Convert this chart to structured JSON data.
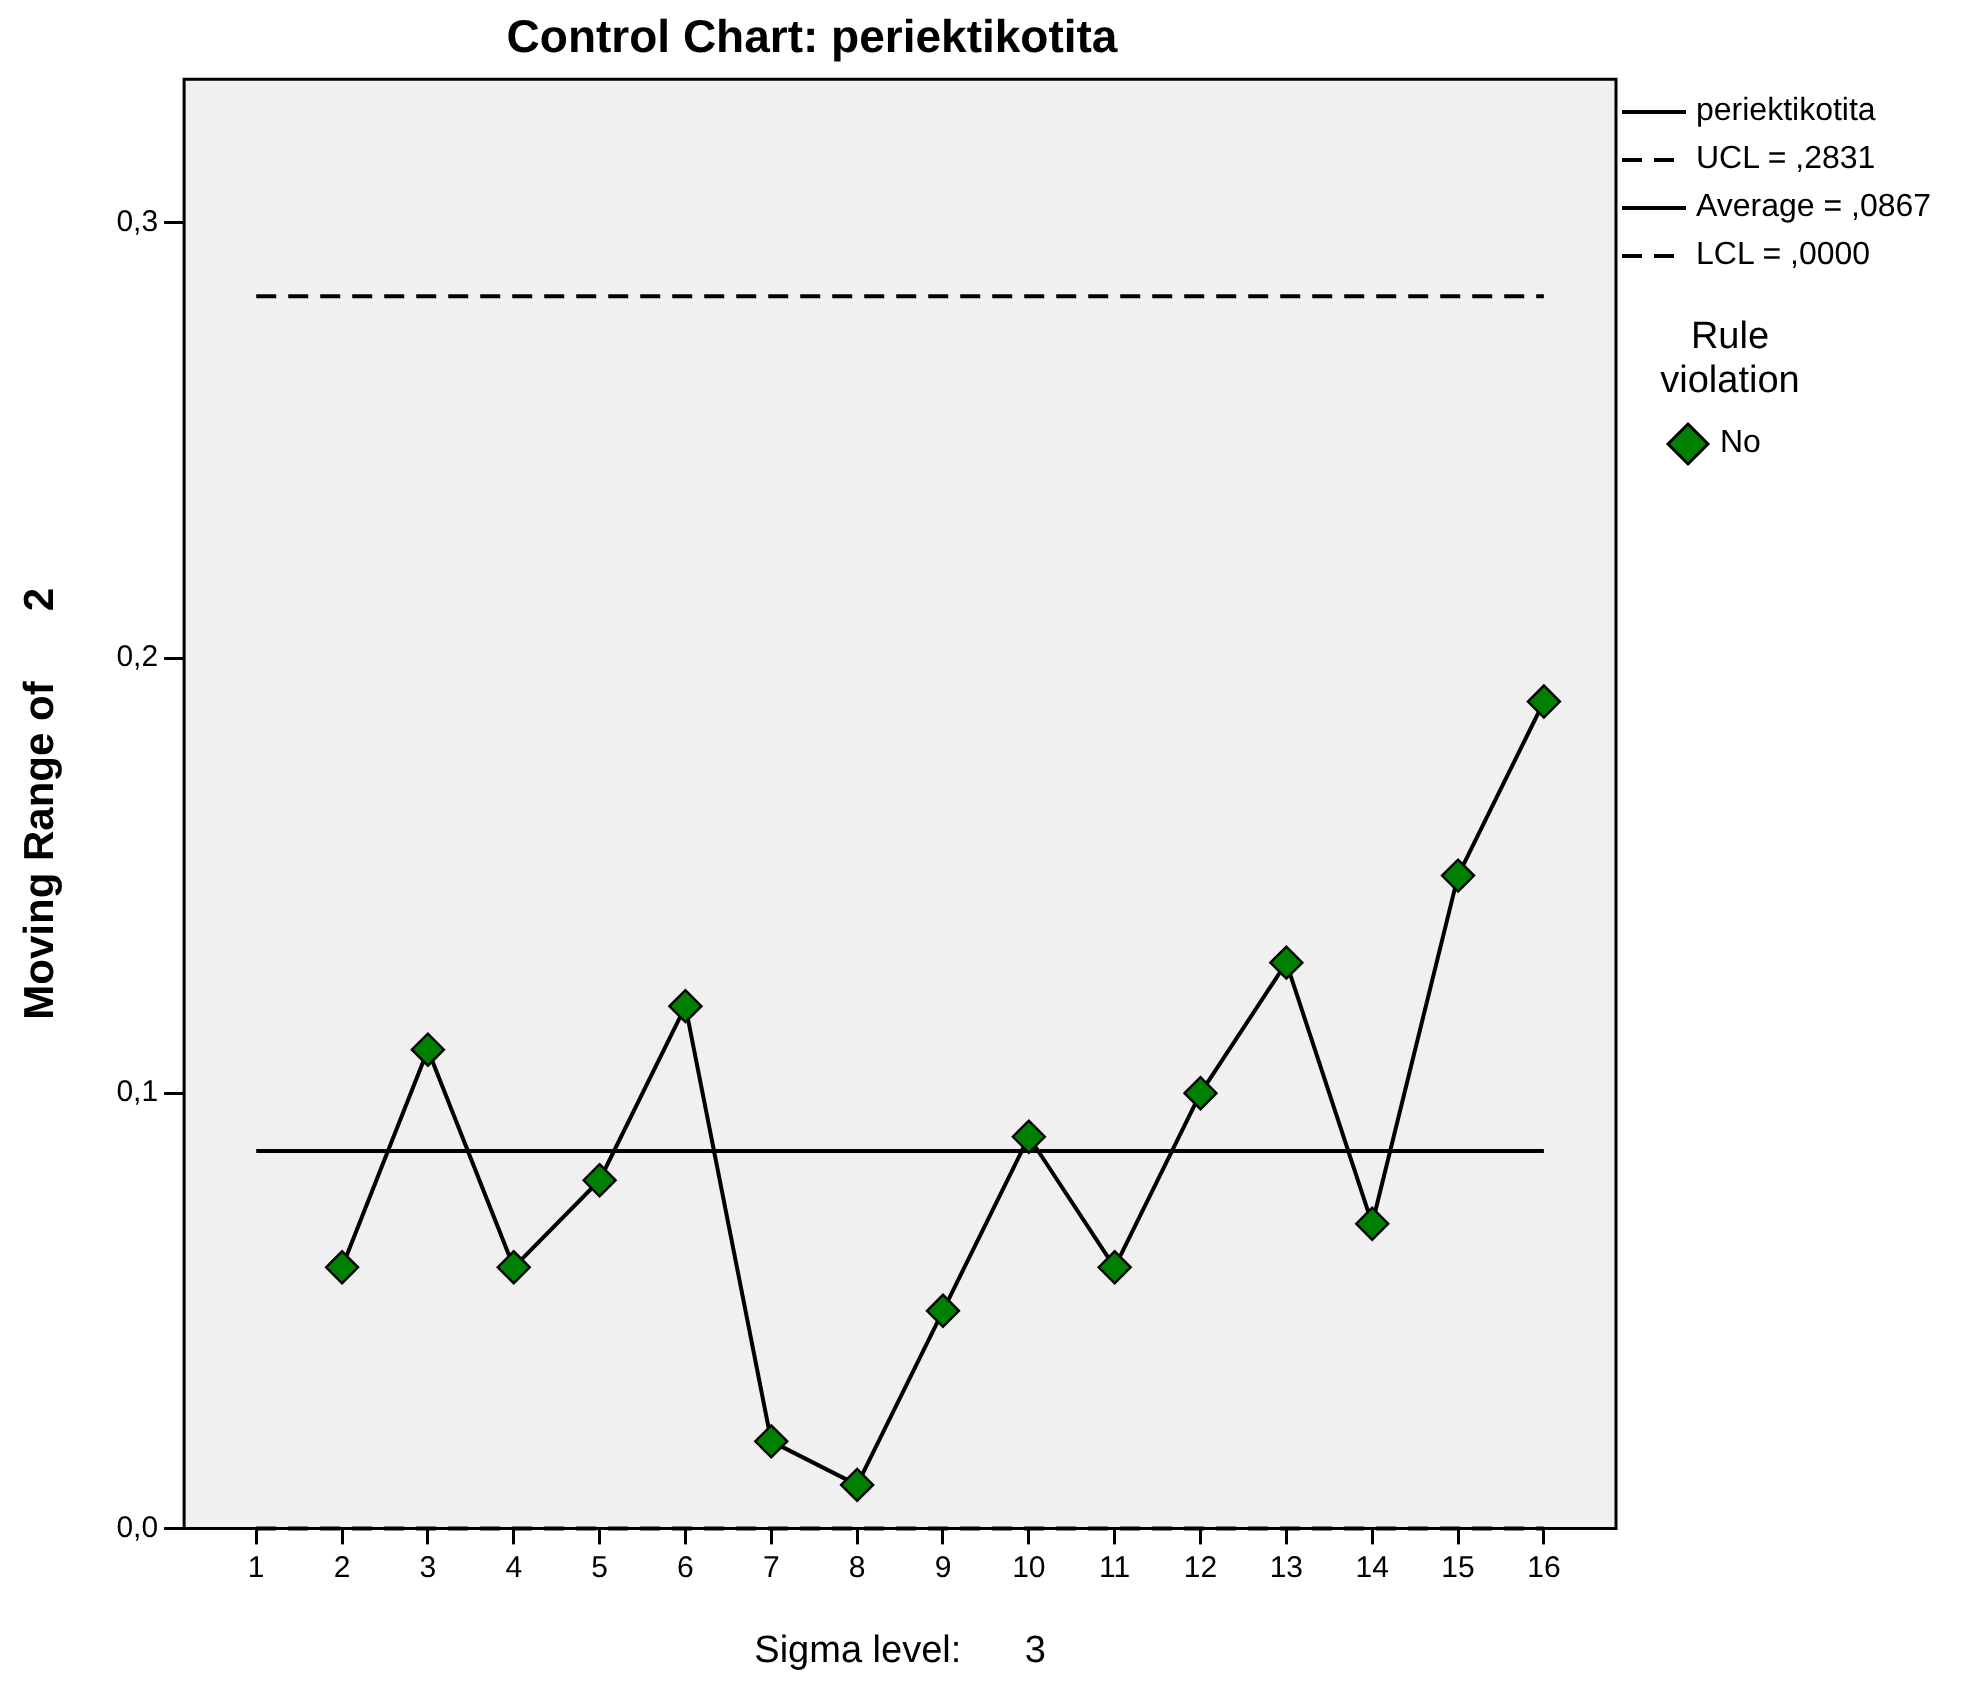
{
  "chart_data": {
    "type": "line",
    "title": "Control Chart: periektikotita",
    "xlabel": "Sigma level:      3",
    "ylabel": "Moving Range of      2",
    "legend_title": "Rule violation",
    "legend": "right",
    "grid": false,
    "xlim": [
      0.16,
      16.84
    ],
    "xticks": [
      1,
      2,
      3,
      4,
      5,
      6,
      7,
      8,
      9,
      10,
      11,
      12,
      13,
      14,
      15,
      16
    ],
    "ylim": [
      0,
      0.333
    ],
    "yticks": [
      {
        "value": 0,
        "label": "0,0"
      },
      {
        "value": 0.1,
        "label": "0,1"
      },
      {
        "value": 0.2,
        "label": "0,2"
      },
      {
        "value": 0.3,
        "label": "0,3"
      }
    ],
    "series": [
      {
        "name": "periektikotita",
        "type": "line",
        "color": "#000000",
        "marker": "none",
        "line_style": "solid",
        "x": [
          2,
          3,
          4,
          5,
          6,
          7,
          8,
          9,
          10,
          11,
          12,
          13,
          14,
          15,
          16
        ],
        "values": [
          0.06,
          0.11,
          0.06,
          0.08,
          0.12,
          0.02,
          0.01,
          0.05,
          0.09,
          0.06,
          0.1,
          0.13,
          0.07,
          0.15,
          0.19
        ]
      },
      {
        "name": "No",
        "type": "scatter",
        "color": "#008000",
        "marker": "diamond",
        "x": [
          2,
          3,
          4,
          5,
          6,
          7,
          8,
          9,
          10,
          11,
          12,
          13,
          14,
          15,
          16
        ],
        "values": [
          0.06,
          0.11,
          0.06,
          0.08,
          0.12,
          0.02,
          0.01,
          0.05,
          0.09,
          0.06,
          0.1,
          0.13,
          0.07,
          0.15,
          0.19
        ]
      }
    ],
    "ref_lines": [
      {
        "axis": "y",
        "value": 0.2831,
        "label": "UCL = ,2831",
        "color": "#000000",
        "line_style": "dashed"
      },
      {
        "axis": "y",
        "value": 0.0867,
        "label": "Average = ,0867",
        "color": "#000000",
        "line_style": "solid"
      },
      {
        "axis": "y",
        "value": 0,
        "label": "LCL = ,0000",
        "color": "#000000",
        "line_style": "dashed"
      }
    ]
  }
}
